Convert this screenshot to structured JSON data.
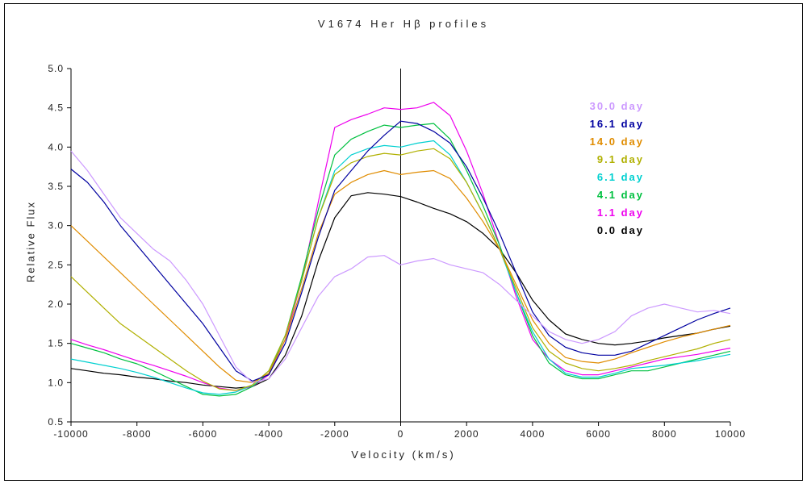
{
  "chart_data": {
    "type": "line",
    "title": "V1674 Her  Hβ  profiles",
    "xlabel": "Velocity (km/s)",
    "ylabel": "Relative Flux",
    "xlim": [
      -10000,
      10000
    ],
    "ylim": [
      0.5,
      5.0
    ],
    "x_ticks": [
      -10000,
      -8000,
      -6000,
      -4000,
      -2000,
      0,
      2000,
      4000,
      6000,
      8000,
      10000
    ],
    "y_ticks": [
      0.5,
      1.0,
      1.5,
      2.0,
      2.5,
      3.0,
      3.5,
      4.0,
      4.5,
      5.0
    ],
    "grid": false,
    "legend_position": "upper right",
    "zero_velocity_reference_line": true,
    "x": [
      -10000,
      -9500,
      -9000,
      -8500,
      -8000,
      -7500,
      -7000,
      -6500,
      -6000,
      -5500,
      -5000,
      -4500,
      -4000,
      -3500,
      -3000,
      -2500,
      -2000,
      -1500,
      -1000,
      -500,
      0,
      500,
      1000,
      1500,
      2000,
      2500,
      3000,
      3500,
      4000,
      4500,
      5000,
      5500,
      6000,
      6500,
      7000,
      7500,
      8000,
      8500,
      9000,
      9500,
      10000
    ],
    "series": [
      {
        "name": "30.0 day",
        "color": "#cc99ff",
        "values": [
          3.95,
          3.7,
          3.4,
          3.1,
          2.9,
          2.7,
          2.55,
          2.3,
          2.0,
          1.6,
          1.2,
          1.0,
          1.05,
          1.3,
          1.7,
          2.1,
          2.35,
          2.45,
          2.6,
          2.62,
          2.5,
          2.55,
          2.58,
          2.5,
          2.45,
          2.4,
          2.25,
          2.05,
          1.85,
          1.65,
          1.55,
          1.5,
          1.55,
          1.65,
          1.85,
          1.95,
          2.0,
          1.95,
          1.9,
          1.92,
          1.88
        ]
      },
      {
        "name": "16.1 day",
        "color": "#0000a0",
        "values": [
          3.72,
          3.55,
          3.3,
          3.0,
          2.75,
          2.5,
          2.25,
          2.0,
          1.75,
          1.45,
          1.15,
          1.02,
          1.1,
          1.5,
          2.15,
          2.85,
          3.45,
          3.7,
          3.95,
          4.15,
          4.33,
          4.3,
          4.2,
          4.05,
          3.75,
          3.35,
          2.9,
          2.4,
          1.9,
          1.6,
          1.45,
          1.38,
          1.35,
          1.35,
          1.4,
          1.5,
          1.6,
          1.7,
          1.8,
          1.88,
          1.95
        ]
      },
      {
        "name": "14.0 day",
        "color": "#e08c00",
        "values": [
          3.0,
          2.8,
          2.6,
          2.4,
          2.2,
          2.0,
          1.8,
          1.6,
          1.4,
          1.2,
          1.03,
          1.0,
          1.12,
          1.55,
          2.2,
          2.9,
          3.4,
          3.55,
          3.65,
          3.7,
          3.65,
          3.68,
          3.7,
          3.6,
          3.35,
          3.05,
          2.7,
          2.25,
          1.8,
          1.5,
          1.32,
          1.27,
          1.25,
          1.3,
          1.38,
          1.45,
          1.52,
          1.58,
          1.63,
          1.68,
          1.73
        ]
      },
      {
        "name": "9.1 day",
        "color": "#b0b000",
        "values": [
          2.35,
          2.15,
          1.95,
          1.75,
          1.6,
          1.45,
          1.3,
          1.15,
          1.02,
          0.92,
          0.9,
          0.97,
          1.15,
          1.6,
          2.3,
          3.1,
          3.65,
          3.8,
          3.88,
          3.92,
          3.9,
          3.95,
          3.98,
          3.85,
          3.55,
          3.15,
          2.7,
          2.2,
          1.7,
          1.4,
          1.25,
          1.18,
          1.15,
          1.18,
          1.22,
          1.28,
          1.33,
          1.38,
          1.43,
          1.5,
          1.55
        ]
      },
      {
        "name": "6.1 day",
        "color": "#00d0d0",
        "values": [
          1.3,
          1.26,
          1.22,
          1.18,
          1.13,
          1.07,
          1.0,
          0.93,
          0.87,
          0.85,
          0.88,
          0.97,
          1.15,
          1.6,
          2.3,
          3.1,
          3.7,
          3.9,
          3.98,
          4.02,
          4.0,
          4.05,
          4.08,
          3.9,
          3.55,
          3.15,
          2.7,
          2.15,
          1.65,
          1.3,
          1.12,
          1.07,
          1.07,
          1.12,
          1.18,
          1.2,
          1.22,
          1.25,
          1.28,
          1.32,
          1.36
        ]
      },
      {
        "name": "4.1 day",
        "color": "#00c040",
        "values": [
          1.5,
          1.44,
          1.38,
          1.3,
          1.24,
          1.15,
          1.05,
          0.95,
          0.85,
          0.83,
          0.85,
          0.95,
          1.12,
          1.6,
          2.35,
          3.2,
          3.9,
          4.1,
          4.2,
          4.28,
          4.25,
          4.28,
          4.3,
          4.1,
          3.7,
          3.25,
          2.75,
          2.15,
          1.6,
          1.25,
          1.1,
          1.05,
          1.05,
          1.1,
          1.15,
          1.15,
          1.2,
          1.25,
          1.3,
          1.35,
          1.4
        ]
      },
      {
        "name": "1.1 day",
        "color": "#ee00ee",
        "values": [
          1.55,
          1.48,
          1.42,
          1.35,
          1.28,
          1.22,
          1.15,
          1.08,
          1.0,
          0.93,
          0.9,
          0.95,
          1.1,
          1.55,
          2.3,
          3.3,
          4.25,
          4.35,
          4.42,
          4.5,
          4.48,
          4.5,
          4.57,
          4.4,
          3.95,
          3.4,
          2.75,
          2.1,
          1.55,
          1.3,
          1.15,
          1.1,
          1.1,
          1.15,
          1.2,
          1.25,
          1.3,
          1.33,
          1.36,
          1.4,
          1.44
        ]
      },
      {
        "name": "0.0 day",
        "color": "#000000",
        "values": [
          1.18,
          1.15,
          1.12,
          1.1,
          1.07,
          1.05,
          1.02,
          1.0,
          0.97,
          0.95,
          0.93,
          0.95,
          1.05,
          1.35,
          1.85,
          2.55,
          3.1,
          3.38,
          3.42,
          3.4,
          3.37,
          3.3,
          3.22,
          3.15,
          3.05,
          2.9,
          2.7,
          2.4,
          2.05,
          1.8,
          1.62,
          1.55,
          1.5,
          1.48,
          1.5,
          1.53,
          1.57,
          1.6,
          1.63,
          1.68,
          1.72
        ]
      }
    ]
  }
}
